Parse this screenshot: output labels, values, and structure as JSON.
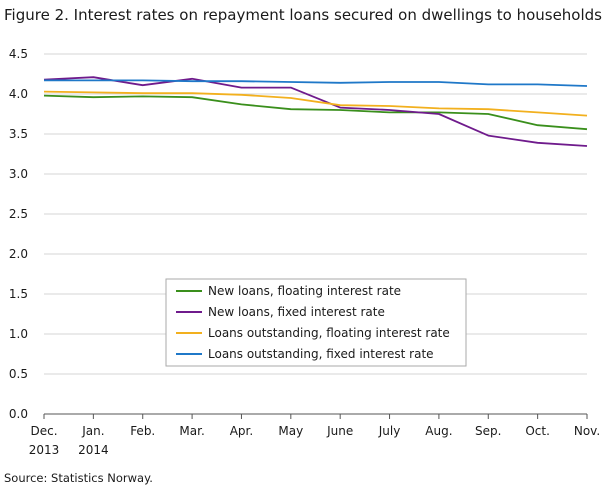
{
  "chart_data": {
    "type": "line",
    "title": "Figure 2. Interest rates on repayment loans secured on dwellings to households",
    "xlabel": "",
    "ylabel": "",
    "categories": [
      [
        "Dec.",
        "2013"
      ],
      [
        "Jan.",
        "2014"
      ],
      [
        "Feb."
      ],
      [
        "Mar."
      ],
      [
        "Apr."
      ],
      [
        "May"
      ],
      [
        "June"
      ],
      [
        "July"
      ],
      [
        "Aug."
      ],
      [
        "Sep."
      ],
      [
        "Oct."
      ],
      [
        "Nov."
      ]
    ],
    "ylim": [
      0,
      4.5
    ],
    "yticks": [
      "0.0",
      "0.5",
      "1.0",
      "1.5",
      "2.0",
      "2.5",
      "3.0",
      "3.5",
      "4.0",
      "4.5"
    ],
    "grid": "horizontal",
    "legend_position": "center-bottom",
    "series": [
      {
        "name": "New loans, floating interest rate",
        "color": "#3a8f1c",
        "values": [
          3.98,
          3.96,
          3.97,
          3.96,
          3.87,
          3.81,
          3.8,
          3.77,
          3.77,
          3.75,
          3.61,
          3.56
        ]
      },
      {
        "name": "New loans, fixed interest rate",
        "color": "#6f1b8c",
        "values": [
          4.18,
          4.21,
          4.11,
          4.19,
          4.08,
          4.08,
          3.83,
          3.8,
          3.75,
          3.48,
          3.39,
          3.35
        ]
      },
      {
        "name": "Loans outstanding, floating interest rate",
        "color": "#f2b01e",
        "values": [
          4.03,
          4.02,
          4.01,
          4.01,
          3.99,
          3.95,
          3.86,
          3.85,
          3.82,
          3.81,
          3.77,
          3.73
        ]
      },
      {
        "name": "Loans outstanding, fixed interest rate",
        "color": "#1f78c8",
        "values": [
          4.17,
          4.17,
          4.17,
          4.16,
          4.16,
          4.15,
          4.14,
          4.15,
          4.15,
          4.12,
          4.12,
          4.1
        ]
      }
    ]
  },
  "footer": {
    "source": "Source: Statistics Norway."
  }
}
